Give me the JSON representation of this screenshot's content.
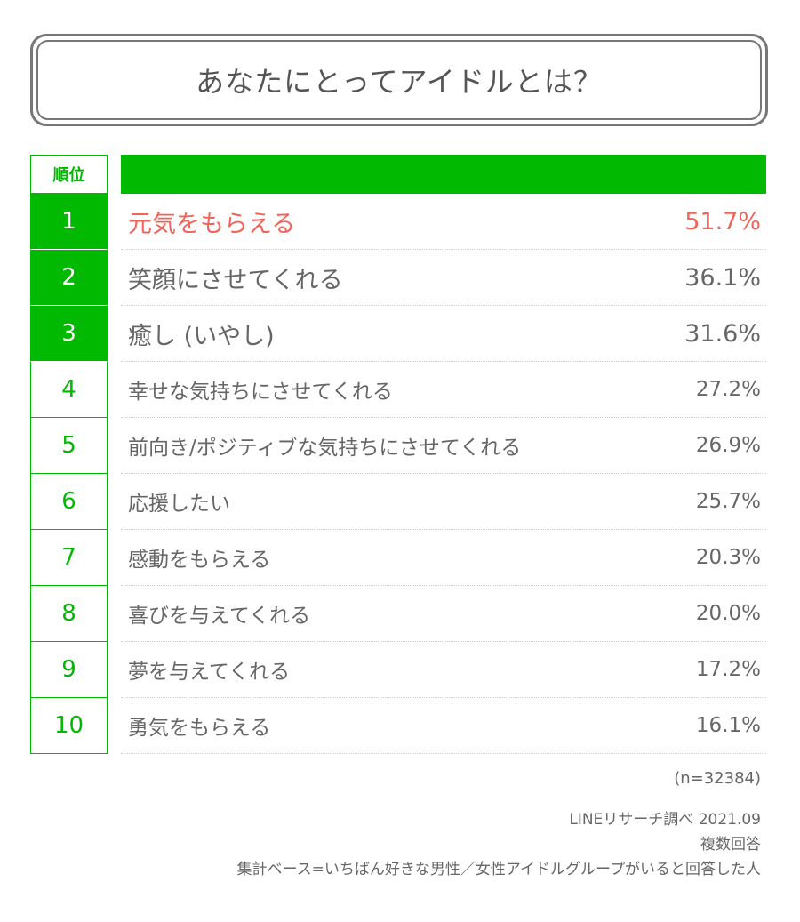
{
  "title": "あなたにとってアイドルとは？",
  "header": {
    "rank_label": "順位"
  },
  "chart_data": {
    "type": "table",
    "title": "あなたにとってアイドルとは？",
    "columns": [
      "順位",
      "",
      ""
    ],
    "rows": [
      {
        "rank": "1",
        "label": "元気をもらえる",
        "value": "51.7%"
      },
      {
        "rank": "2",
        "label": "笑顔にさせてくれる",
        "value": "36.1%"
      },
      {
        "rank": "3",
        "label": "癒し (いやし)",
        "value": "31.6%"
      },
      {
        "rank": "4",
        "label": "幸せな気持ちにさせてくれる",
        "value": "27.2%"
      },
      {
        "rank": "5",
        "label": "前向き/ポジティブな気持ちにさせてくれる",
        "value": "26.9%"
      },
      {
        "rank": "6",
        "label": "応援したい",
        "value": "25.7%"
      },
      {
        "rank": "7",
        "label": "感動をもらえる",
        "value": "20.3%"
      },
      {
        "rank": "8",
        "label": "喜びを与えてくれる",
        "value": "20.0%"
      },
      {
        "rank": "9",
        "label": "夢を与えてくれる",
        "value": "17.2%"
      },
      {
        "rank": "10",
        "label": "勇気をもらえる",
        "value": "16.1%"
      }
    ]
  },
  "notes": {
    "sample": "(n=32384)",
    "source": "LINEリサーチ調べ 2021.09",
    "answer_type": "複数回答",
    "base": "集計ベース=いちばん好きな男性／女性アイドルグループがいると回答した人"
  },
  "colors": {
    "accent": "#00b900",
    "highlight": "#f0645a",
    "text": "#666666",
    "border": "#777777"
  }
}
